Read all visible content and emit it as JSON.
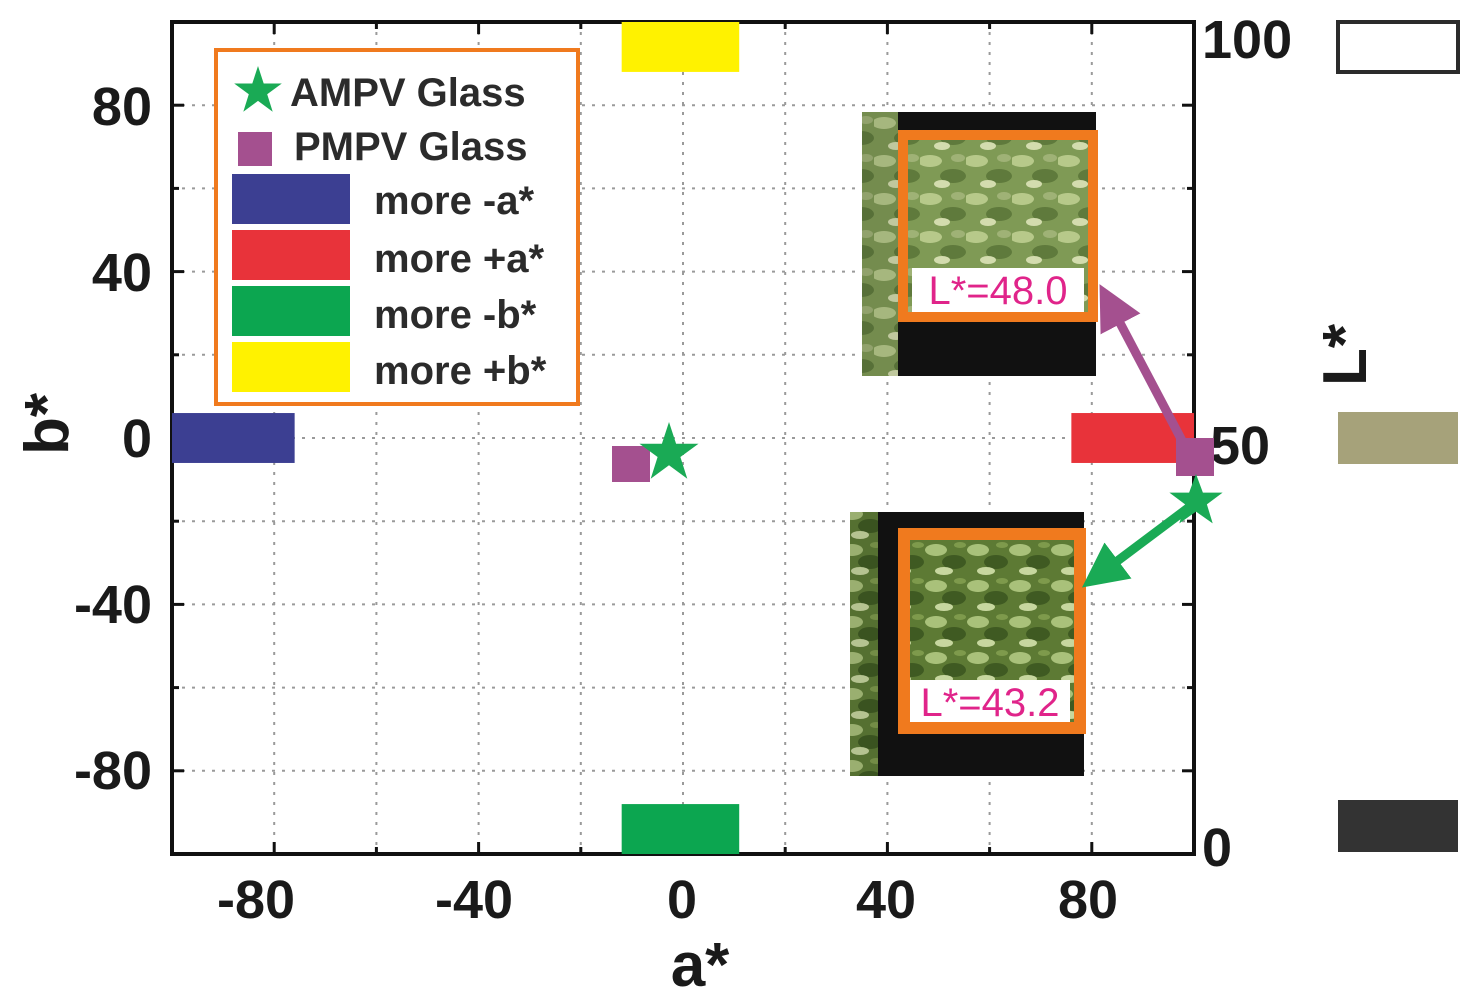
{
  "chart_data": {
    "type": "scatter",
    "xlabel": "a*",
    "ylabel": "b*",
    "y2label": "L*",
    "xlim": [
      -100,
      100
    ],
    "ylim": [
      -100,
      100
    ],
    "y2lim": [
      0,
      100
    ],
    "xticks": [
      -80,
      -40,
      0,
      40,
      80
    ],
    "yticks": [
      80,
      40,
      0,
      -40,
      -80
    ],
    "y2ticks": [
      100,
      50,
      0
    ],
    "xtick_labels": [
      "-80",
      "-40",
      "0",
      "40",
      "80"
    ],
    "ytick_labels": [
      "80",
      "40",
      "0",
      "-40",
      "-80"
    ],
    "y2tick_labels": [
      "100",
      "50",
      "0"
    ],
    "grid": true,
    "legend_position": "top-left",
    "series": [
      {
        "name": "AMPV Glass",
        "marker": "star",
        "color": "#1aaa55",
        "points": [
          {
            "x": -3,
            "y": -3
          }
        ]
      },
      {
        "name": "PMPV Glass",
        "marker": "square",
        "color": "#a4508f",
        "points": [
          {
            "x": -10,
            "y": -6
          }
        ]
      }
    ],
    "color_bars": [
      {
        "name": "more -a*",
        "color": "#3c3f92"
      },
      {
        "name": "more +a*",
        "color": "#e8333a"
      },
      {
        "name": "more -b*",
        "color": "#0ca650"
      },
      {
        "name": "more +b*",
        "color": "#fff200"
      }
    ],
    "lightness_swatches": [
      {
        "value": 100,
        "color": "#ffffff"
      },
      {
        "value": 50,
        "color": "#a6a27a"
      },
      {
        "value": 0,
        "color": "#333333"
      }
    ],
    "insets": [
      {
        "label": "L*=48.0",
        "marker": "PMPV Glass"
      },
      {
        "label": "L*=43.2",
        "marker": "AMPV Glass"
      }
    ]
  }
}
